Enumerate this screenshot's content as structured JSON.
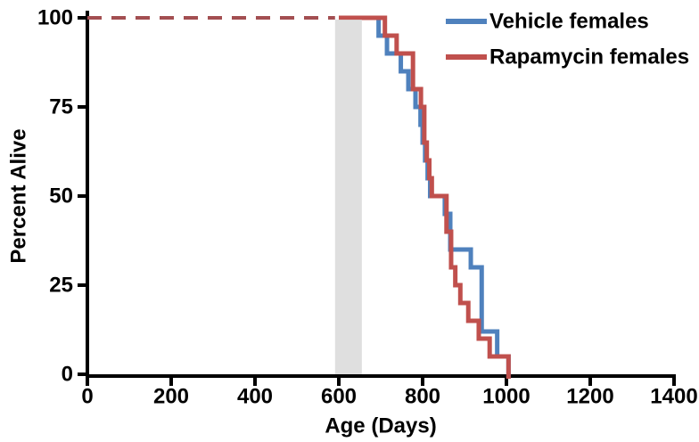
{
  "chart_data": {
    "type": "line",
    "subtype": "kaplan-meier-step-survival",
    "title": "",
    "xlabel": "Age (Days)",
    "ylabel": "Percent Alive",
    "xlim": [
      0,
      1400
    ],
    "ylim": [
      0,
      100
    ],
    "xticks": [
      0,
      200,
      400,
      600,
      800,
      1000,
      1200,
      1400
    ],
    "yticks": [
      0,
      25,
      50,
      75,
      100
    ],
    "grid": false,
    "legend_position": "top-right",
    "axis_color": "#000000",
    "dashed_baseline": {
      "percent": 100,
      "x_start": 0,
      "x_end": 591,
      "color": "#a34f52",
      "style": "dashed"
    },
    "treatment_band": {
      "x_start": 591,
      "x_end": 655,
      "color": "#d9d9d9",
      "opacity": 0.85
    },
    "series": [
      {
        "name": "Vehicle females",
        "color": "#4f81bd",
        "step_points": [
          [
            600,
            100
          ],
          [
            695,
            95
          ],
          [
            715,
            90
          ],
          [
            748,
            85
          ],
          [
            766,
            80
          ],
          [
            783,
            75
          ],
          [
            795,
            70
          ],
          [
            800,
            65
          ],
          [
            806,
            60
          ],
          [
            812,
            55
          ],
          [
            818,
            50
          ],
          [
            853,
            45
          ],
          [
            866,
            35
          ],
          [
            915,
            30
          ],
          [
            941,
            12
          ],
          [
            978,
            5
          ],
          [
            1005,
            0
          ]
        ]
      },
      {
        "name": "Rapamycin females",
        "color": "#c0504d",
        "step_points": [
          [
            600,
            100
          ],
          [
            710,
            95
          ],
          [
            738,
            90
          ],
          [
            777,
            80
          ],
          [
            796,
            75
          ],
          [
            804,
            65
          ],
          [
            810,
            60
          ],
          [
            816,
            55
          ],
          [
            822,
            50
          ],
          [
            857,
            40
          ],
          [
            868,
            30
          ],
          [
            878,
            25
          ],
          [
            890,
            20
          ],
          [
            909,
            15
          ],
          [
            934,
            10
          ],
          [
            960,
            5
          ],
          [
            1005,
            0
          ]
        ]
      }
    ]
  }
}
